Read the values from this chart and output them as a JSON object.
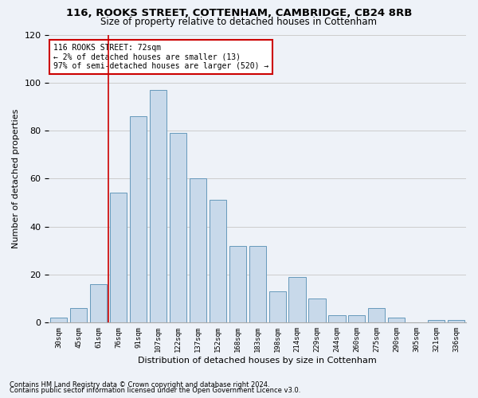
{
  "title1": "116, ROOKS STREET, COTTENHAM, CAMBRIDGE, CB24 8RB",
  "title2": "Size of property relative to detached houses in Cottenham",
  "xlabel": "Distribution of detached houses by size in Cottenham",
  "ylabel": "Number of detached properties",
  "categories": [
    "30sqm",
    "45sqm",
    "61sqm",
    "76sqm",
    "91sqm",
    "107sqm",
    "122sqm",
    "137sqm",
    "152sqm",
    "168sqm",
    "183sqm",
    "198sqm",
    "214sqm",
    "229sqm",
    "244sqm",
    "260sqm",
    "275sqm",
    "290sqm",
    "305sqm",
    "321sqm",
    "336sqm"
  ],
  "values": [
    2,
    6,
    16,
    54,
    86,
    97,
    79,
    60,
    51,
    32,
    32,
    13,
    19,
    10,
    3,
    3,
    6,
    2,
    0,
    1,
    1
  ],
  "bar_color": "#c8d9ea",
  "bar_edge_color": "#6699bb",
  "ylim": [
    0,
    120
  ],
  "yticks": [
    0,
    20,
    40,
    60,
    80,
    100,
    120
  ],
  "annotation_title": "116 ROOKS STREET: 72sqm",
  "annotation_line1": "← 2% of detached houses are smaller (13)",
  "annotation_line2": "97% of semi-detached houses are larger (520) →",
  "vline_x_index": 2.5,
  "annotation_box_color": "#ffffff",
  "annotation_box_edge": "#cc0000",
  "vline_color": "#cc0000",
  "footer1": "Contains HM Land Registry data © Crown copyright and database right 2024.",
  "footer2": "Contains public sector information licensed under the Open Government Licence v3.0.",
  "bg_color": "#eef2f8"
}
